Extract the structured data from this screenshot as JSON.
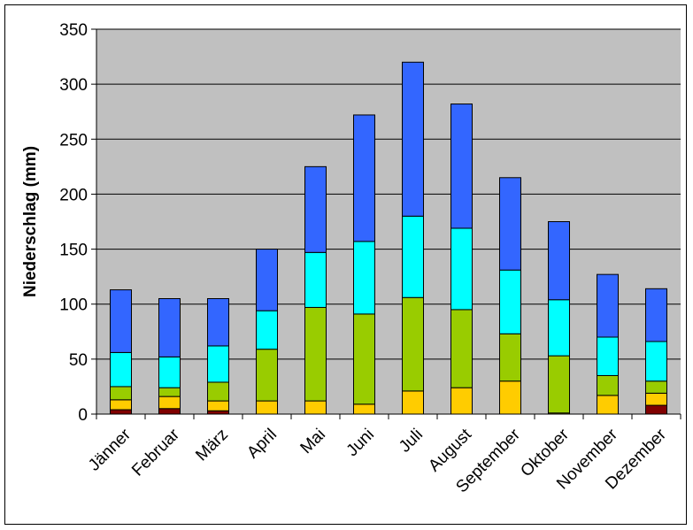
{
  "chart_data": {
    "type": "bar",
    "stacked": true,
    "title": "",
    "xlabel": "",
    "ylabel": "Niederschlag (mm)",
    "ylim": [
      0,
      350
    ],
    "yticks": [
      0,
      50,
      100,
      150,
      200,
      250,
      300,
      350
    ],
    "grid": true,
    "legend": "none",
    "plot_background": "#c0c0c0",
    "categories": [
      "Jänner",
      "Februar",
      "März",
      "April",
      "Mai",
      "Juni",
      "Juli",
      "August",
      "September",
      "Oktober",
      "November",
      "Dezember"
    ],
    "series": [
      {
        "color": "#800000",
        "values": [
          4,
          5,
          3,
          0,
          0,
          0,
          0,
          0,
          0,
          0,
          0,
          8
        ]
      },
      {
        "color": "#ffcc00",
        "values": [
          9,
          11,
          9,
          12,
          12,
          9,
          21,
          24,
          30,
          1,
          17,
          11
        ]
      },
      {
        "color": "#99cc00",
        "values": [
          12,
          8,
          17,
          47,
          85,
          82,
          85,
          71,
          43,
          52,
          18,
          11
        ]
      },
      {
        "color": "#00ffff",
        "values": [
          31,
          28,
          33,
          35,
          50,
          66,
          74,
          74,
          58,
          51,
          35,
          36
        ]
      },
      {
        "color": "#3366ff",
        "values": [
          57,
          53,
          43,
          56,
          78,
          115,
          140,
          113,
          84,
          71,
          57,
          48
        ]
      }
    ],
    "totals": [
      113,
      105,
      105,
      150,
      225,
      272,
      320,
      282,
      215,
      175,
      127,
      114
    ]
  }
}
